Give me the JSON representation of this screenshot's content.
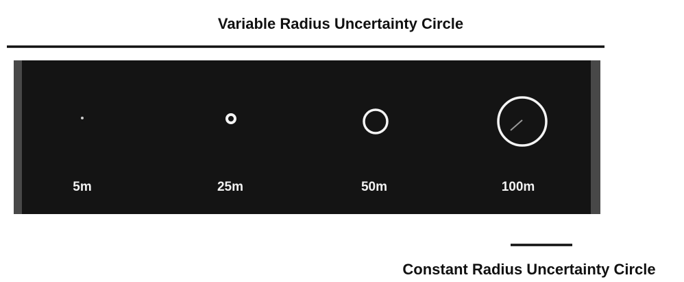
{
  "title": "Variable Radius Uncertainty Circle",
  "labels": [
    "5m",
    "25m",
    "50m",
    "100m"
  ],
  "caption": "Constant Radius Uncertainty Circle"
}
